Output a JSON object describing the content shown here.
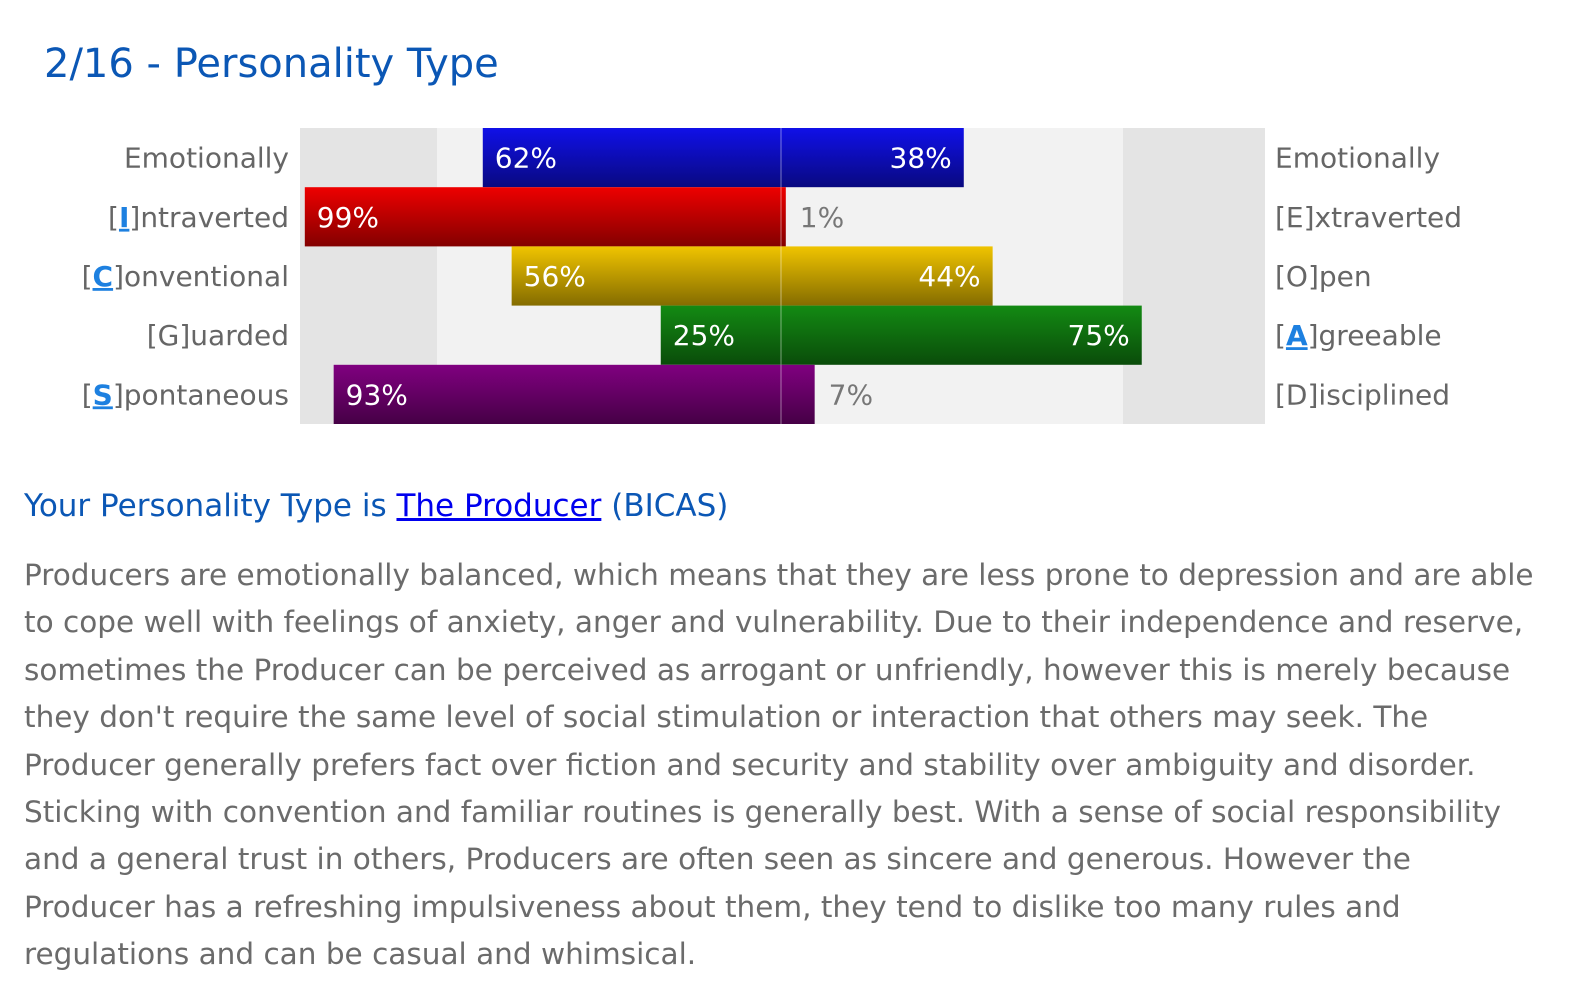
{
  "title": "2/16 - Personality Type",
  "result": {
    "prefix": "Your Personality Type is",
    "type_link": "The Producer",
    "code": "(BICAS)"
  },
  "description": "Producers are emotionally balanced, which means that they are less prone to depression and are able to cope well with feelings of anxiety, anger and vulnerability. Due to their independence and reserve, sometimes the Producer can be perceived as arrogant or unfriendly, however this is merely because they don't require the same level of social stimulation or interaction that others may seek. The Producer generally prefers fact over fiction and security and stability over ambiguity and disorder. Sticking with convention and familiar routines is generally best. With a sense of social responsibility and a general trust in others, Producers are often seen as sincere and generous. However the Producer has a refreshing impulsiveness about them, they tend to dislike too many rules and regulations and can be casual and whimsical.",
  "chart_data": {
    "type": "bar",
    "orientation": "horizontal-diverging",
    "xlim": [
      -100,
      100
    ],
    "traits": [
      {
        "left": {
          "pre": "",
          "letter": "",
          "post": "Emotionally"
        },
        "right": {
          "pre": "",
          "letter": "",
          "post": "Emotionally"
        },
        "left_value": 62,
        "right_value": 38,
        "left_label": "62%",
        "right_label": "38%",
        "color": "#1010e8"
      },
      {
        "left": {
          "pre": "[",
          "letter": "I",
          "post": "]ntraverted"
        },
        "right": {
          "pre": "[E]xtraverted",
          "letter": "",
          "post": ""
        },
        "left_value": 99,
        "right_value": 1,
        "left_label": "99%",
        "right_label": "1%",
        "color": "#ee0000"
      },
      {
        "left": {
          "pre": "[",
          "letter": "C",
          "post": "]onventional"
        },
        "right": {
          "pre": "[O]pen",
          "letter": "",
          "post": ""
        },
        "left_value": 56,
        "right_value": 44,
        "left_label": "56%",
        "right_label": "44%",
        "color": "#f0c400"
      },
      {
        "left": {
          "pre": "[G]uarded",
          "letter": "",
          "post": ""
        },
        "right": {
          "pre": "[",
          "letter": "A",
          "post": "]greeable"
        },
        "left_value": 25,
        "right_value": 75,
        "left_label": "25%",
        "right_label": "75%",
        "color": "#138a13"
      },
      {
        "left": {
          "pre": "[",
          "letter": "S",
          "post": "]pontaneous"
        },
        "right": {
          "pre": "[D]isciplined",
          "letter": "",
          "post": ""
        },
        "left_value": 93,
        "right_value": 7,
        "left_label": "93%",
        "right_label": "7%",
        "color": "#800080"
      }
    ]
  }
}
